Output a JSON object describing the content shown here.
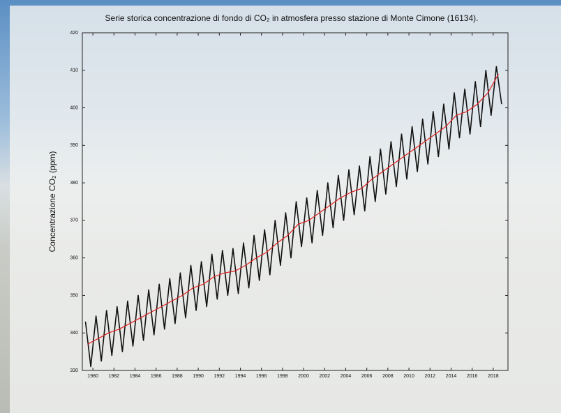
{
  "chart_data": {
    "type": "line",
    "title": "Serie storica concentrazione di fondo di CO₂ in atmosfera presso stazione di Monte Cimone (16134).",
    "y_label": "Concentrazione CO₂ (ppm)",
    "xlim": [
      1979,
      2019.4
    ],
    "ylim": [
      330,
      420
    ],
    "xticks": [
      1980,
      1982,
      1984,
      1986,
      1988,
      1990,
      1992,
      1994,
      1996,
      1998,
      2000,
      2002,
      2004,
      2006,
      2008,
      2010,
      2012,
      2014,
      2016,
      2018
    ],
    "yticks": [
      330,
      340,
      350,
      360,
      370,
      380,
      390,
      400,
      410,
      420
    ],
    "series": [
      {
        "color": "#111111",
        "x": [
          1979.3,
          1979.8,
          1980.3,
          1980.8,
          1981.3,
          1981.8,
          1982.3,
          1982.8,
          1983.3,
          1983.8,
          1984.3,
          1984.8,
          1985.3,
          1985.8,
          1986.3,
          1986.8,
          1987.3,
          1987.8,
          1988.3,
          1988.8,
          1989.3,
          1989.8,
          1990.3,
          1990.8,
          1991.3,
          1991.8,
          1992.3,
          1992.8,
          1993.3,
          1993.8,
          1994.3,
          1994.8,
          1995.3,
          1995.8,
          1996.3,
          1996.8,
          1997.3,
          1997.8,
          1998.3,
          1998.8,
          1999.3,
          1999.8,
          2000.3,
          2000.8,
          2001.3,
          2001.8,
          2002.3,
          2002.8,
          2003.3,
          2003.8,
          2004.3,
          2004.8,
          2005.3,
          2005.8,
          2006.3,
          2006.8,
          2007.3,
          2007.8,
          2008.3,
          2008.8,
          2009.3,
          2009.8,
          2010.3,
          2010.8,
          2011.3,
          2011.8,
          2012.3,
          2012.8,
          2013.3,
          2013.8,
          2014.3,
          2014.8,
          2015.3,
          2015.8,
          2016.3,
          2016.8,
          2017.3,
          2017.8,
          2018.3,
          2018.8
        ],
        "values": [
          343,
          331,
          344.5,
          332.5,
          346,
          334,
          347,
          335,
          348.5,
          336.5,
          350,
          338,
          351.5,
          339.5,
          353,
          341,
          354.5,
          342.5,
          356,
          344,
          358,
          346,
          359,
          347,
          361,
          349,
          362,
          350,
          362.5,
          350.5,
          364,
          352,
          366,
          354,
          367.5,
          355.5,
          370,
          358,
          372,
          360,
          375,
          363,
          376,
          364,
          378,
          366,
          380,
          368,
          382,
          370,
          383.5,
          371.5,
          384.5,
          372.5,
          387,
          375,
          389,
          377,
          391,
          379,
          393,
          381,
          395,
          383,
          397,
          385,
          399,
          387,
          401,
          389,
          404,
          392,
          405,
          393,
          407,
          395,
          410,
          398,
          411,
          401
        ]
      },
      {
        "color": "#e02020",
        "x": [
          1979.5,
          1980.5,
          1981.5,
          1982.5,
          1983.5,
          1984.5,
          1985.5,
          1986.5,
          1987.5,
          1988.5,
          1989.5,
          1990.5,
          1991.5,
          1992.5,
          1993.5,
          1994.5,
          1995.5,
          1996.5,
          1997.5,
          1998.5,
          1999.5,
          2000.5,
          2001.5,
          2002.5,
          2003.5,
          2004.5,
          2005.5,
          2006.5,
          2007.5,
          2008.5,
          2009.5,
          2010.5,
          2011.5,
          2012.5,
          2013.5,
          2014.5,
          2015.5,
          2016.5,
          2017.5,
          2018.5
        ],
        "values": [
          337,
          338.5,
          340,
          341,
          342.5,
          344,
          345.5,
          347,
          348.5,
          350,
          352,
          353,
          355,
          356,
          356.5,
          358,
          360,
          361.5,
          364,
          366,
          369,
          370,
          372,
          374,
          376,
          377.5,
          378.5,
          381,
          383,
          385,
          387,
          389,
          391,
          393,
          395,
          398,
          399,
          401,
          404,
          409
        ]
      }
    ]
  }
}
